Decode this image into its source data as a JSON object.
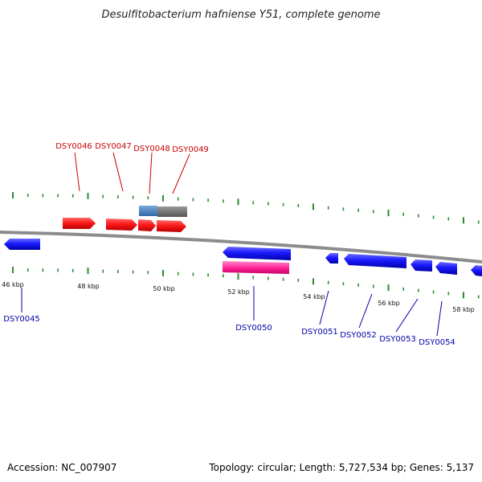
{
  "title": "Desulfitobacterium hafniense Y51, complete genome",
  "footer": {
    "accession": "Accession: NC_007907",
    "stats": "Topology: circular; Length: 5,727,534 bp; Genes: 5,137"
  },
  "colors": {
    "backbone": "#8c8c8c",
    "tick": "#2e8b2e",
    "forward_gene": "#ff1a1a",
    "reverse_gene": "#1a1aff",
    "forward_label": "#cc0000",
    "reverse_label": "#0000aa",
    "rna_gene": "#ff3399",
    "highlight_a": "#4a86c0",
    "highlight_b": "#6e6e6e"
  },
  "scale_labels": [
    "46 kbp",
    "48 kbp",
    "50 kbp",
    "52 kbp",
    "54 kbp",
    "56 kbp",
    "58 kbp"
  ],
  "forward_genes": [
    "DSY0046",
    "DSY0047",
    "DSY0048",
    "DSY0049"
  ],
  "reverse_genes": [
    "DSY0045",
    "DSY0050",
    "DSY0051",
    "DSY0052",
    "DSY0053",
    "DSY0054"
  ]
}
